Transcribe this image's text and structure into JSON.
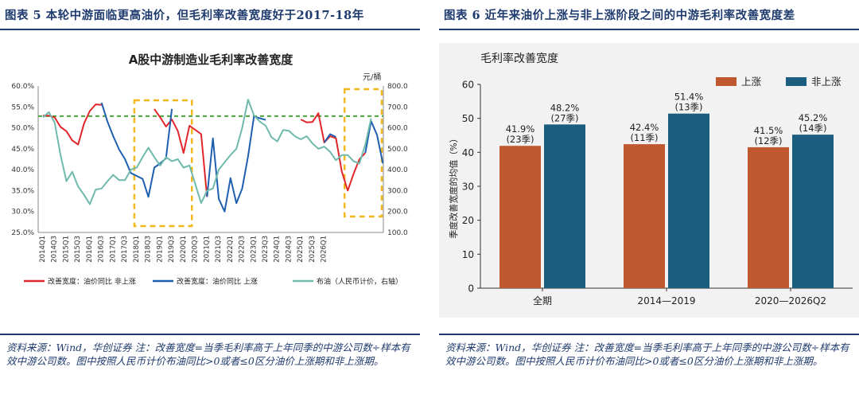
{
  "colors": {
    "navy": "#1f3b6e",
    "red": "#e0262b",
    "blue": "#1f5fb0",
    "teal": "#6fb9ad",
    "green_dash": "#4aa63c",
    "yellow": "#f2b81b",
    "orange_bar": "#c0582f",
    "darkblue_bar": "#1b5e7f"
  },
  "left": {
    "figure_title": "图表 5 本轮中游面临更高油价，但毛利率改善宽度好于2017-18年",
    "source_note": "资料来源：Wind，华创证券 注：改善宽度=当季毛利率高于上年同季的中游公司数÷样本有效中游公司数。图中按照人民币计价布油同比>0或者≤0区分油价上涨期和非上涨期。"
  },
  "right": {
    "figure_title": "图表 6 近年来油价上涨与非上涨阶段之间的中游毛利率改善宽度差",
    "source_note": "资料来源：Wind，华创证券 注：改善宽度=当季毛利率高于上年同季的中游公司数÷样本有效中游公司数。图中按照人民币计价布油同比>0或者≤0区分油价上涨期和非上涨期。"
  },
  "chart_data": [
    {
      "type": "line",
      "title": "A股中游制造业毛利率改善宽度",
      "ylabel_right": "元/桶",
      "ylim_left": [
        25,
        60
      ],
      "ylim_right": [
        100,
        800
      ],
      "y_ticks_left": [
        "25.0%",
        "30.0%",
        "35.0%",
        "40.0%",
        "45.0%",
        "50.0%",
        "55.0%",
        "60.0%"
      ],
      "y_ticks_right": [
        "100.0",
        "200.0",
        "300.0",
        "400.0",
        "500.0",
        "600.0",
        "700.0",
        "800.0"
      ],
      "x_ticks": [
        "2014Q1",
        "2014Q3",
        "2015Q1",
        "2015Q3",
        "2016Q1",
        "2016Q3",
        "2017Q1",
        "2017Q3",
        "2018Q1",
        "2018Q3",
        "2019Q1",
        "2019Q3",
        "2020Q1",
        "2020Q3",
        "2021Q1",
        "2021Q3",
        "2022Q1",
        "2022Q3",
        "2023Q1",
        "2023Q3",
        "2024Q1",
        "2024Q3",
        "2025Q1",
        "2025Q3",
        "2026Q1"
      ],
      "legend": [
        "改善宽度：油价同比 非上涨",
        "改善宽度：油价同比 上涨",
        "布油（人民币计价，右轴）"
      ],
      "reference_level": 52.8,
      "series": [
        {
          "name": "改善宽度：油价同比 非上涨",
          "color": "#e0262b",
          "points": [
            [
              0,
              52.9
            ],
            [
              1,
              52.9
            ],
            [
              2,
              52.5
            ],
            [
              3,
              50.2
            ],
            [
              4,
              49.2
            ],
            [
              5,
              47.0
            ],
            [
              6,
              46.0
            ],
            [
              7,
              51.0
            ],
            [
              8,
              54.0
            ],
            [
              9,
              55.6
            ],
            [
              10,
              55.5
            ],
            [
              19,
              54.5
            ],
            [
              20,
              52.5
            ],
            [
              21,
              50.3
            ],
            [
              22,
              52.0
            ],
            [
              23,
              49.3
            ],
            [
              24,
              44.0
            ],
            [
              25,
              50.5
            ],
            [
              26,
              49.5
            ],
            [
              27,
              48.5
            ],
            [
              28,
              33.5
            ],
            [
              44,
              52.0
            ],
            [
              45,
              51.3
            ],
            [
              46,
              51.4
            ],
            [
              47,
              53.5
            ],
            [
              48,
              46.5
            ],
            [
              49,
              48.0
            ],
            [
              50,
              47.5
            ],
            [
              51,
              39.5
            ],
            [
              52,
              35.0
            ],
            [
              53,
              39.0
            ],
            [
              54,
              42.5
            ],
            [
              55,
              44.0
            ]
          ]
        },
        {
          "name": "改善宽度：油价同比 上涨",
          "color": "#1f5fb0",
          "points": [
            [
              10,
              56.0
            ],
            [
              11,
              51.5
            ],
            [
              12,
              48.0
            ],
            [
              13,
              44.8
            ],
            [
              14,
              42.5
            ],
            [
              15,
              39.2
            ],
            [
              16,
              38.5
            ],
            [
              17,
              37.8
            ],
            [
              18,
              33.5
            ],
            [
              19,
              40.5
            ],
            [
              20,
              41.5
            ],
            [
              21,
              42.7
            ],
            [
              22,
              54.5
            ],
            [
              28,
              33.5
            ],
            [
              29,
              47.5
            ],
            [
              30,
              33.0
            ],
            [
              31,
              30.0
            ],
            [
              32,
              38.0
            ],
            [
              33,
              32.0
            ],
            [
              34,
              35.5
            ],
            [
              35,
              43.2
            ],
            [
              36,
              52.7
            ],
            [
              37,
              52.3
            ],
            [
              38,
              51.9
            ],
            [
              44,
              52.0
            ],
            [
              48,
              46.5
            ],
            [
              49,
              48.5
            ],
            [
              50,
              47.8
            ],
            [
              55,
              44.0
            ],
            [
              56,
              51.6
            ],
            [
              57,
              48.3
            ],
            [
              58,
              41.5
            ]
          ]
        },
        {
          "name": "布油（人民币计价，右轴）",
          "color": "#6fb9ad",
          "points": [
            [
              0,
              650
            ],
            [
              1,
              675
            ],
            [
              2,
              625
            ],
            [
              3,
              470
            ],
            [
              4,
              345
            ],
            [
              5,
              390
            ],
            [
              6,
              320
            ],
            [
              7,
              280
            ],
            [
              8,
              235
            ],
            [
              9,
              305
            ],
            [
              10,
              310
            ],
            [
              11,
              345
            ],
            [
              12,
              375
            ],
            [
              13,
              350
            ],
            [
              14,
              350
            ],
            [
              15,
              400
            ],
            [
              16,
              410
            ],
            [
              17,
              460
            ],
            [
              18,
              505
            ],
            [
              19,
              460
            ],
            [
              20,
              420
            ],
            [
              21,
              460
            ],
            [
              22,
              440
            ],
            [
              23,
              450
            ],
            [
              24,
              410
            ],
            [
              25,
              420
            ],
            [
              26,
              330
            ],
            [
              27,
              240
            ],
            [
              28,
              300
            ],
            [
              29,
              310
            ],
            [
              30,
              400
            ],
            [
              31,
              435
            ],
            [
              32,
              470
            ],
            [
              33,
              500
            ],
            [
              34,
              600
            ],
            [
              35,
              735
            ],
            [
              36,
              660
            ],
            [
              37,
              630
            ],
            [
              38,
              610
            ],
            [
              39,
              555
            ],
            [
              40,
              535
            ],
            [
              41,
              590
            ],
            [
              42,
              585
            ],
            [
              43,
              560
            ],
            [
              44,
              545
            ],
            [
              45,
              560
            ],
            [
              46,
              525
            ],
            [
              47,
              500
            ],
            [
              48,
              510
            ],
            [
              49,
              485
            ],
            [
              50,
              445
            ],
            [
              51,
              470
            ],
            [
              52,
              470
            ],
            [
              53,
              440
            ],
            [
              54,
              430
            ],
            [
              55,
              520
            ],
            [
              56,
              645
            ]
          ]
        }
      ]
    },
    {
      "type": "bar",
      "title": "毛利率改善宽度",
      "ylabel": "季度改善宽度的均值（%）",
      "ylim": [
        0,
        60
      ],
      "y_ticks": [
        "0",
        "10",
        "20",
        "30",
        "40",
        "50",
        "60"
      ],
      "categories": [
        "全期",
        "2014—2019",
        "2020—2026Q2"
      ],
      "series": [
        {
          "name": "上涨",
          "color": "#c0582f",
          "values": [
            41.9,
            42.4,
            41.5
          ],
          "quarters": [
            "(23季)",
            "(11季)",
            "(12季)"
          ]
        },
        {
          "name": "非上涨",
          "color": "#1b5e7f",
          "values": [
            48.2,
            51.4,
            45.2
          ],
          "quarters": [
            "(27季)",
            "(13季)",
            "(14季)"
          ]
        }
      ],
      "data_labels": [
        [
          "41.9%",
          "42.4%",
          "41.5%"
        ],
        [
          "48.2%",
          "51.4%",
          "45.2%"
        ]
      ]
    }
  ]
}
